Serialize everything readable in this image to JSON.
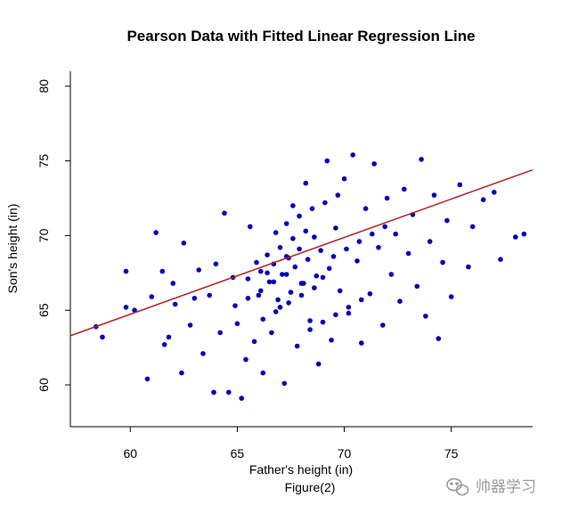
{
  "caption": "Figure(2)",
  "watermark": {
    "text": "帅器学习",
    "icon": "wechat-icon",
    "color": "#9a9a9a"
  },
  "chart_data": {
    "type": "scatter",
    "title": "Pearson Data with Fitted Linear Regression Line",
    "xlabel": "Father's height (in)",
    "ylabel": "Son's height (in)",
    "xlim": [
      57.2,
      78.8
    ],
    "ylim": [
      57.2,
      81.0
    ],
    "xticks": [
      60,
      65,
      70,
      75
    ],
    "yticks": [
      60,
      65,
      70,
      75,
      80
    ],
    "grid": false,
    "legend": "none",
    "point_color": "#0000b4",
    "line_color": "#b22222",
    "regression_line": {
      "intercept": 33.8866,
      "slope": 0.51409
    },
    "series": [
      {
        "points": [
          [
            58.4,
            63.9
          ],
          [
            58.7,
            63.2
          ],
          [
            59.8,
            65.2
          ],
          [
            59.8,
            67.6
          ],
          [
            60.2,
            65.0
          ],
          [
            60.8,
            60.4
          ],
          [
            61.0,
            65.9
          ],
          [
            61.2,
            70.2
          ],
          [
            61.5,
            67.6
          ],
          [
            61.6,
            62.7
          ],
          [
            61.8,
            63.2
          ],
          [
            62.0,
            66.8
          ],
          [
            62.1,
            65.4
          ],
          [
            62.4,
            60.8
          ],
          [
            62.5,
            69.5
          ],
          [
            62.8,
            64.0
          ],
          [
            63.0,
            65.8
          ],
          [
            63.2,
            67.7
          ],
          [
            63.4,
            62.1
          ],
          [
            63.7,
            66.0
          ],
          [
            63.9,
            59.5
          ],
          [
            64.0,
            68.1
          ],
          [
            64.2,
            63.5
          ],
          [
            64.4,
            71.5
          ],
          [
            64.6,
            59.5
          ],
          [
            64.8,
            67.2
          ],
          [
            65.0,
            64.1
          ],
          [
            65.2,
            59.1
          ],
          [
            65.4,
            61.7
          ],
          [
            65.6,
            70.6
          ],
          [
            65.8,
            62.9
          ],
          [
            66.0,
            66.0
          ],
          [
            66.2,
            60.8
          ],
          [
            66.4,
            67.5
          ],
          [
            66.6,
            63.5
          ],
          [
            66.8,
            70.2
          ],
          [
            67.0,
            65.2
          ],
          [
            67.2,
            60.1
          ],
          [
            67.4,
            68.5
          ],
          [
            67.6,
            72.0
          ],
          [
            67.8,
            62.6
          ],
          [
            68.0,
            66.8
          ],
          [
            68.2,
            73.5
          ],
          [
            68.4,
            64.3
          ],
          [
            68.6,
            69.9
          ],
          [
            68.8,
            61.4
          ],
          [
            69.0,
            67.2
          ],
          [
            69.2,
            75.0
          ],
          [
            69.4,
            63.0
          ],
          [
            69.6,
            70.5
          ],
          [
            69.8,
            66.3
          ],
          [
            70.0,
            73.8
          ],
          [
            70.2,
            64.8
          ],
          [
            70.4,
            75.4
          ],
          [
            70.6,
            68.3
          ],
          [
            70.8,
            62.8
          ],
          [
            71.0,
            71.8
          ],
          [
            71.2,
            66.1
          ],
          [
            71.4,
            74.8
          ],
          [
            71.6,
            69.2
          ],
          [
            71.8,
            64.0
          ],
          [
            72.0,
            72.5
          ],
          [
            72.2,
            67.4
          ],
          [
            72.4,
            70.1
          ],
          [
            72.6,
            65.6
          ],
          [
            72.8,
            73.1
          ],
          [
            73.0,
            68.8
          ],
          [
            73.2,
            71.4
          ],
          [
            73.4,
            66.6
          ],
          [
            73.6,
            75.1
          ],
          [
            73.8,
            64.6
          ],
          [
            74.0,
            69.6
          ],
          [
            74.2,
            72.7
          ],
          [
            74.4,
            63.1
          ],
          [
            74.6,
            68.2
          ],
          [
            74.8,
            71.0
          ],
          [
            75.0,
            65.9
          ],
          [
            75.4,
            73.4
          ],
          [
            75.8,
            67.9
          ],
          [
            76.0,
            70.6
          ],
          [
            76.5,
            72.4
          ],
          [
            77.0,
            72.9
          ],
          [
            77.3,
            68.4
          ],
          [
            78.0,
            69.9
          ],
          [
            78.4,
            70.1
          ],
          [
            66.5,
            66.9
          ],
          [
            67.1,
            67.4
          ],
          [
            67.7,
            67.9
          ],
          [
            68.3,
            68.4
          ],
          [
            68.9,
            69.0
          ],
          [
            66.9,
            65.7
          ],
          [
            67.5,
            66.2
          ],
          [
            68.1,
            66.8
          ],
          [
            68.7,
            67.3
          ],
          [
            69.3,
            67.8
          ],
          [
            65.9,
            68.2
          ],
          [
            66.4,
            68.7
          ],
          [
            67.0,
            69.2
          ],
          [
            67.6,
            69.8
          ],
          [
            68.2,
            70.3
          ],
          [
            66.2,
            64.4
          ],
          [
            66.8,
            64.9
          ],
          [
            67.4,
            65.5
          ],
          [
            68.0,
            66.0
          ],
          [
            68.6,
            66.5
          ],
          [
            67.3,
            70.8
          ],
          [
            67.9,
            71.3
          ],
          [
            68.5,
            71.8
          ],
          [
            69.1,
            72.2
          ],
          [
            69.7,
            72.7
          ],
          [
            65.5,
            67.1
          ],
          [
            66.1,
            67.6
          ],
          [
            66.7,
            68.1
          ],
          [
            67.3,
            68.6
          ],
          [
            67.9,
            69.1
          ],
          [
            69.5,
            68.6
          ],
          [
            70.1,
            69.1
          ],
          [
            70.7,
            69.6
          ],
          [
            71.3,
            70.1
          ],
          [
            71.9,
            70.6
          ],
          [
            64.9,
            65.3
          ],
          [
            65.5,
            65.8
          ],
          [
            66.1,
            66.3
          ],
          [
            66.7,
            66.9
          ],
          [
            67.3,
            67.4
          ],
          [
            68.4,
            63.7
          ],
          [
            69.0,
            64.2
          ],
          [
            69.6,
            64.7
          ],
          [
            70.2,
            65.2
          ],
          [
            70.8,
            65.7
          ]
        ]
      }
    ]
  }
}
